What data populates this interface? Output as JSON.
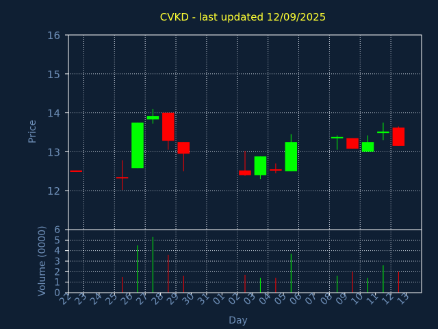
{
  "chart_data": {
    "type": "candlestick",
    "title": "CVKD - last updated 12/09/2025",
    "xlabel": "Day",
    "ylabel_price": "Price",
    "ylabel_volume": "Volume (0000)",
    "price_ylim": [
      11,
      16
    ],
    "price_ticks": [
      12,
      13,
      14,
      15,
      16
    ],
    "volume_ylim": [
      0,
      6
    ],
    "volume_ticks": [
      0,
      1,
      2,
      3,
      4,
      5,
      6
    ],
    "grid": true,
    "days": [
      "22",
      "23",
      "24",
      "25",
      "26",
      "27",
      "28",
      "29",
      "30",
      "31",
      "01",
      "02",
      "03",
      "04",
      "05",
      "06",
      "07",
      "08",
      "09",
      "10",
      "11",
      "12",
      "13"
    ],
    "candles": [
      {
        "day": "22",
        "open": 12.52,
        "high": 12.52,
        "low": 12.48,
        "close": 12.48,
        "volume": 0
      },
      {
        "day": "25",
        "open": 12.35,
        "high": 12.78,
        "low": 12.02,
        "close": 12.32,
        "volume": 1.5
      },
      {
        "day": "26",
        "open": 12.58,
        "high": 13.75,
        "low": 12.58,
        "close": 13.75,
        "volume": 4.5
      },
      {
        "day": "27",
        "open": 13.83,
        "high": 14.1,
        "low": 13.72,
        "close": 13.92,
        "volume": 5.3
      },
      {
        "day": "28",
        "open": 14.0,
        "high": 14.0,
        "low": 13.05,
        "close": 13.28,
        "volume": 3.6
      },
      {
        "day": "29",
        "open": 13.25,
        "high": 13.25,
        "low": 12.5,
        "close": 12.95,
        "volume": 1.6
      },
      {
        "day": "02",
        "open": 12.52,
        "high": 13.02,
        "low": 12.38,
        "close": 12.4,
        "volume": 1.7
      },
      {
        "day": "03",
        "open": 12.4,
        "high": 12.88,
        "low": 12.3,
        "close": 12.88,
        "volume": 1.4
      },
      {
        "day": "04",
        "open": 12.55,
        "high": 12.7,
        "low": 12.45,
        "close": 12.52,
        "volume": 1.4
      },
      {
        "day": "05",
        "open": 12.5,
        "high": 13.45,
        "low": 12.5,
        "close": 13.25,
        "volume": 3.7
      },
      {
        "day": "08",
        "open": 13.35,
        "high": 13.42,
        "low": 13.05,
        "close": 13.38,
        "volume": 1.6
      },
      {
        "day": "09",
        "open": 13.35,
        "high": 13.35,
        "low": 13.08,
        "close": 13.08,
        "volume": 2.0
      },
      {
        "day": "10",
        "open": 13.0,
        "high": 13.42,
        "low": 13.0,
        "close": 13.25,
        "volume": 1.4
      },
      {
        "day": "11",
        "open": 13.48,
        "high": 13.75,
        "low": 13.3,
        "close": 13.52,
        "volume": 2.6
      },
      {
        "day": "12",
        "open": 13.62,
        "high": 13.65,
        "low": 13.15,
        "close": 13.15,
        "volume": 2.0
      }
    ],
    "colors": {
      "up": "#00ff00",
      "down": "#ff0000",
      "grid": "#c8d0dc",
      "frame": "#ffffff",
      "text": "#6e8fb8",
      "title": "#ffff33",
      "background": "#0f1f33"
    }
  }
}
